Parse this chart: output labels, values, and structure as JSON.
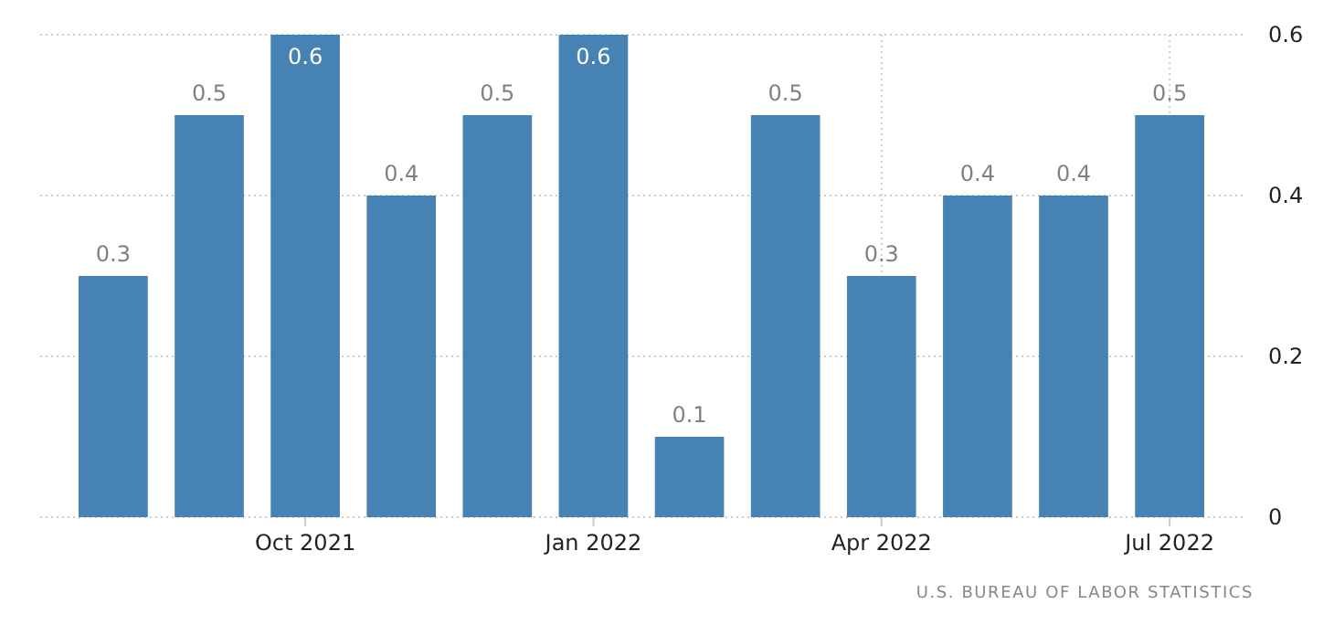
{
  "chart_data": {
    "type": "bar",
    "categories": [
      null,
      null,
      "Oct 2021",
      null,
      null,
      "Jan 2022",
      null,
      null,
      "Apr 2022",
      null,
      null,
      "Jul 2022"
    ],
    "values": [
      0.3,
      0.5,
      0.6,
      0.4,
      0.5,
      0.6,
      0.1,
      0.5,
      0.3,
      0.4,
      0.4,
      0.5
    ],
    "color": "#4682b4",
    "ylim": [
      0,
      0.6
    ],
    "yticks": [
      0,
      0.2,
      0.4,
      0.6
    ],
    "grid": true,
    "data_labels": true,
    "annotations": [
      "U.S. BUREAU OF LABOR STATISTICS"
    ]
  }
}
